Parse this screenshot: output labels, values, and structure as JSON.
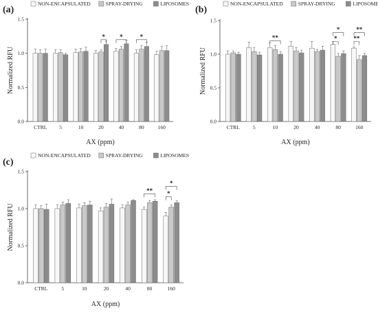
{
  "colors": {
    "non_encapsulated": "#f7f7f7",
    "spray_drying": "#c9c9c9",
    "liposomes": "#8c8c8c"
  },
  "chart_data": [
    {
      "type": "bar",
      "panel": "(a)",
      "xlabel": "AX (ppm)",
      "ylabel": "Normalized RFU",
      "ylim": [
        0,
        1.5
      ],
      "yticks": [
        "0.0",
        "0.5",
        "1.0",
        "1.5"
      ],
      "categories": [
        "CTRL",
        "5",
        "10",
        "20",
        "40",
        "80",
        "160"
      ],
      "legend": [
        "NON-ENCAPSULATED",
        "SPRAY-DRYING",
        "LIPOSOMES"
      ],
      "legend_position": "top",
      "series": [
        {
          "name": "NON-ENCAPSULATED",
          "values": [
            1.0,
            1.0,
            1.01,
            1.0,
            1.03,
            1.0,
            0.98
          ],
          "errors": [
            0.06,
            0.05,
            0.05,
            0.04,
            0.04,
            0.05,
            0.05
          ]
        },
        {
          "name": "SPRAY-DRYING",
          "values": [
            1.0,
            1.01,
            1.02,
            1.02,
            1.06,
            1.06,
            1.04
          ],
          "errors": [
            0.05,
            0.04,
            0.05,
            0.03,
            0.04,
            0.05,
            0.06
          ]
        },
        {
          "name": "LIPOSOMES",
          "values": [
            1.0,
            0.98,
            1.03,
            1.13,
            1.14,
            1.1,
            1.04
          ],
          "errors": [
            0.06,
            0.02,
            0.06,
            0.05,
            0.05,
            0.06,
            0.07
          ]
        }
      ],
      "significance": [
        {
          "category": "20",
          "from": 1,
          "to": 2,
          "y": 1.2,
          "label": "*"
        },
        {
          "category": "40",
          "from": 0,
          "to": 2,
          "y": 1.2,
          "label": "*"
        },
        {
          "category": "80",
          "from": 0,
          "to": 2,
          "y": 1.2,
          "label": "*"
        }
      ]
    },
    {
      "type": "bar",
      "panel": "(b)",
      "xlabel": "AX (ppm)",
      "ylabel": "Normalized RFU",
      "ylim": [
        0,
        1.5
      ],
      "yticks": [
        "0.0",
        "0.5",
        "1.0",
        "1.5"
      ],
      "categories": [
        "CTRL",
        "5",
        "10",
        "20",
        "40",
        "80",
        "160"
      ],
      "legend": [
        "NON-ENCAPSULATED",
        "SPRAY-DRYING",
        "LIPOSOMES"
      ],
      "legend_position": "top",
      "series": [
        {
          "name": "NON-ENCAPSULATED",
          "values": [
            1.0,
            1.1,
            1.1,
            1.12,
            1.09,
            1.15,
            1.09
          ],
          "errors": [
            0.05,
            0.08,
            0.07,
            0.07,
            0.1,
            0.04,
            0.02
          ]
        },
        {
          "name": "SPRAY-DRYING",
          "values": [
            1.02,
            1.04,
            1.07,
            1.05,
            1.04,
            0.97,
            0.92
          ],
          "errors": [
            0.03,
            0.06,
            0.06,
            0.05,
            0.03,
            0.04,
            0.06
          ]
        },
        {
          "name": "LIPOSOMES",
          "values": [
            1.0,
            0.99,
            1.0,
            1.02,
            1.06,
            1.01,
            0.98
          ],
          "errors": [
            0.03,
            0.04,
            0.04,
            0.04,
            0.06,
            0.04,
            0.03
          ]
        }
      ],
      "significance": [
        {
          "category": "10",
          "from": 0,
          "to": 2,
          "y": 1.2,
          "label": "**"
        },
        {
          "category": "80",
          "from": 0,
          "to": 1,
          "y": 1.19,
          "label": "*"
        },
        {
          "category": "80",
          "from": 0,
          "to": 2,
          "y": 1.32,
          "label": "*"
        },
        {
          "category": "160",
          "from": 0,
          "to": 1,
          "y": 1.19,
          "label": "**"
        },
        {
          "category": "160",
          "from": 0,
          "to": 2,
          "y": 1.32,
          "label": "**"
        }
      ]
    },
    {
      "type": "bar",
      "panel": "(c)",
      "xlabel": "AX (ppm)",
      "ylabel": "Normalized RFU",
      "ylim": [
        0,
        1.5
      ],
      "yticks": [
        "0.0",
        "0.5",
        "1.0",
        "1.5"
      ],
      "categories": [
        "CTRL",
        "5",
        "10",
        "20",
        "40",
        "80",
        "160"
      ],
      "legend": [
        "NON-ENCAPSULATED",
        "SPRAY-DRYING",
        "LIPOSOMES"
      ],
      "legend_position": "top",
      "series": [
        {
          "name": "NON-ENCAPSULATED",
          "values": [
            1.0,
            1.0,
            1.01,
            0.97,
            1.01,
            0.99,
            0.9
          ],
          "errors": [
            0.05,
            0.05,
            0.05,
            0.04,
            0.04,
            0.03,
            0.05
          ]
        },
        {
          "name": "SPRAY-DRYING",
          "values": [
            1.0,
            1.05,
            1.04,
            1.02,
            1.05,
            1.08,
            1.02
          ],
          "errors": [
            0.04,
            0.04,
            0.04,
            0.05,
            0.04,
            0.03,
            0.03
          ]
        },
        {
          "name": "LIPOSOMES",
          "values": [
            0.99,
            1.07,
            1.05,
            1.06,
            1.11,
            1.1,
            1.08
          ],
          "errors": [
            0.07,
            0.05,
            0.05,
            0.07,
            0.01,
            0.02,
            0.03
          ]
        }
      ],
      "significance": [
        {
          "category": "80",
          "from": 0,
          "to": 2,
          "y": 1.2,
          "label": "**"
        },
        {
          "category": "160",
          "from": 0,
          "to": 1,
          "y": 1.16,
          "label": "*"
        },
        {
          "category": "160",
          "from": 0,
          "to": 2,
          "y": 1.3,
          "label": "*"
        }
      ]
    }
  ]
}
